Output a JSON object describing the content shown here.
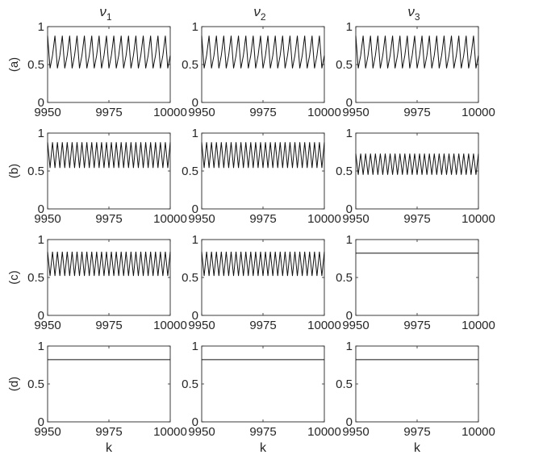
{
  "figure": {
    "column_titles": [
      {
        "sym": "ν",
        "sub": "1"
      },
      {
        "sym": "ν",
        "sub": "2"
      },
      {
        "sym": "ν",
        "sub": "3"
      }
    ],
    "row_labels": [
      "(a)",
      "(b)",
      "(c)",
      "(d)"
    ],
    "xlabel": "k"
  },
  "chart_data": [
    {
      "type": "line",
      "panel": "a",
      "column": 1,
      "xlim": [
        9950,
        10000
      ],
      "ylim": [
        0,
        1
      ],
      "xticks": [
        9950,
        9975,
        10000
      ],
      "yticks": [
        0,
        0.5,
        1
      ],
      "series": [
        {
          "pattern": "period3",
          "start": 9950,
          "end": 10000,
          "values": [
            0.88,
            0.45,
            0.62
          ]
        }
      ]
    },
    {
      "type": "line",
      "panel": "a",
      "column": 2,
      "xlim": [
        9950,
        10000
      ],
      "ylim": [
        0,
        1
      ],
      "xticks": [
        9950,
        9975,
        10000
      ],
      "yticks": [
        0,
        0.5,
        1
      ],
      "series": [
        {
          "pattern": "period3",
          "start": 9950,
          "end": 10000,
          "values": [
            0.88,
            0.45,
            0.62
          ]
        }
      ]
    },
    {
      "type": "line",
      "panel": "a",
      "column": 3,
      "xlim": [
        9950,
        10000
      ],
      "ylim": [
        0,
        1
      ],
      "xticks": [
        9950,
        9975,
        10000
      ],
      "yticks": [
        0,
        0.5,
        1
      ],
      "series": [
        {
          "pattern": "period3",
          "start": 9950,
          "end": 10000,
          "values": [
            0.88,
            0.45,
            0.62
          ]
        }
      ]
    },
    {
      "type": "line",
      "panel": "b",
      "column": 1,
      "xlim": [
        9950,
        10000
      ],
      "ylim": [
        0,
        1
      ],
      "xticks": [
        9950,
        9975,
        10000
      ],
      "yticks": [
        0,
        0.5,
        1
      ],
      "series": [
        {
          "pattern": "period2",
          "start": 9950,
          "end": 10000,
          "values": [
            0.88,
            0.54
          ]
        }
      ]
    },
    {
      "type": "line",
      "panel": "b",
      "column": 2,
      "xlim": [
        9950,
        10000
      ],
      "ylim": [
        0,
        1
      ],
      "xticks": [
        9950,
        9975,
        10000
      ],
      "yticks": [
        0,
        0.5,
        1
      ],
      "series": [
        {
          "pattern": "period2",
          "start": 9950,
          "end": 10000,
          "values": [
            0.88,
            0.54
          ]
        }
      ]
    },
    {
      "type": "line",
      "panel": "b",
      "column": 3,
      "xlim": [
        9950,
        10000
      ],
      "ylim": [
        0,
        1
      ],
      "xticks": [
        9950,
        9975,
        10000
      ],
      "yticks": [
        0,
        0.5,
        1
      ],
      "series": [
        {
          "pattern": "period2",
          "start": 9950,
          "end": 10000,
          "values": [
            0.73,
            0.45
          ]
        }
      ]
    },
    {
      "type": "line",
      "panel": "c",
      "column": 1,
      "xlim": [
        9950,
        10000
      ],
      "ylim": [
        0,
        1
      ],
      "xticks": [
        9950,
        9975,
        10000
      ],
      "yticks": [
        0,
        0.5,
        1
      ],
      "series": [
        {
          "pattern": "period2",
          "start": 9950,
          "end": 10000,
          "values": [
            0.84,
            0.52
          ]
        }
      ]
    },
    {
      "type": "line",
      "panel": "c",
      "column": 2,
      "xlim": [
        9950,
        10000
      ],
      "ylim": [
        0,
        1
      ],
      "xticks": [
        9950,
        9975,
        10000
      ],
      "yticks": [
        0,
        0.5,
        1
      ],
      "series": [
        {
          "pattern": "period2",
          "start": 9950,
          "end": 10000,
          "values": [
            0.84,
            0.52
          ]
        }
      ]
    },
    {
      "type": "line",
      "panel": "c",
      "column": 3,
      "xlim": [
        9950,
        10000
      ],
      "ylim": [
        0,
        1
      ],
      "xticks": [
        9950,
        9975,
        10000
      ],
      "yticks": [
        0,
        0.5,
        1
      ],
      "series": [
        {
          "pattern": "constant",
          "start": 9950,
          "end": 10000,
          "values": [
            0.82
          ]
        }
      ]
    },
    {
      "type": "line",
      "panel": "d",
      "column": 1,
      "xlim": [
        9950,
        10000
      ],
      "ylim": [
        0,
        1
      ],
      "xticks": [
        9950,
        9975,
        10000
      ],
      "yticks": [
        0,
        0.5,
        1
      ],
      "series": [
        {
          "pattern": "constant",
          "start": 9950,
          "end": 10000,
          "values": [
            0.82
          ]
        }
      ]
    },
    {
      "type": "line",
      "panel": "d",
      "column": 2,
      "xlim": [
        9950,
        10000
      ],
      "ylim": [
        0,
        1
      ],
      "xticks": [
        9950,
        9975,
        10000
      ],
      "yticks": [
        0,
        0.5,
        1
      ],
      "series": [
        {
          "pattern": "constant",
          "start": 9950,
          "end": 10000,
          "values": [
            0.82
          ]
        }
      ]
    },
    {
      "type": "line",
      "panel": "d",
      "column": 3,
      "xlim": [
        9950,
        10000
      ],
      "ylim": [
        0,
        1
      ],
      "xticks": [
        9950,
        9975,
        10000
      ],
      "yticks": [
        0,
        0.5,
        1
      ],
      "series": [
        {
          "pattern": "constant",
          "start": 9950,
          "end": 10000,
          "values": [
            0.82
          ]
        }
      ]
    }
  ]
}
